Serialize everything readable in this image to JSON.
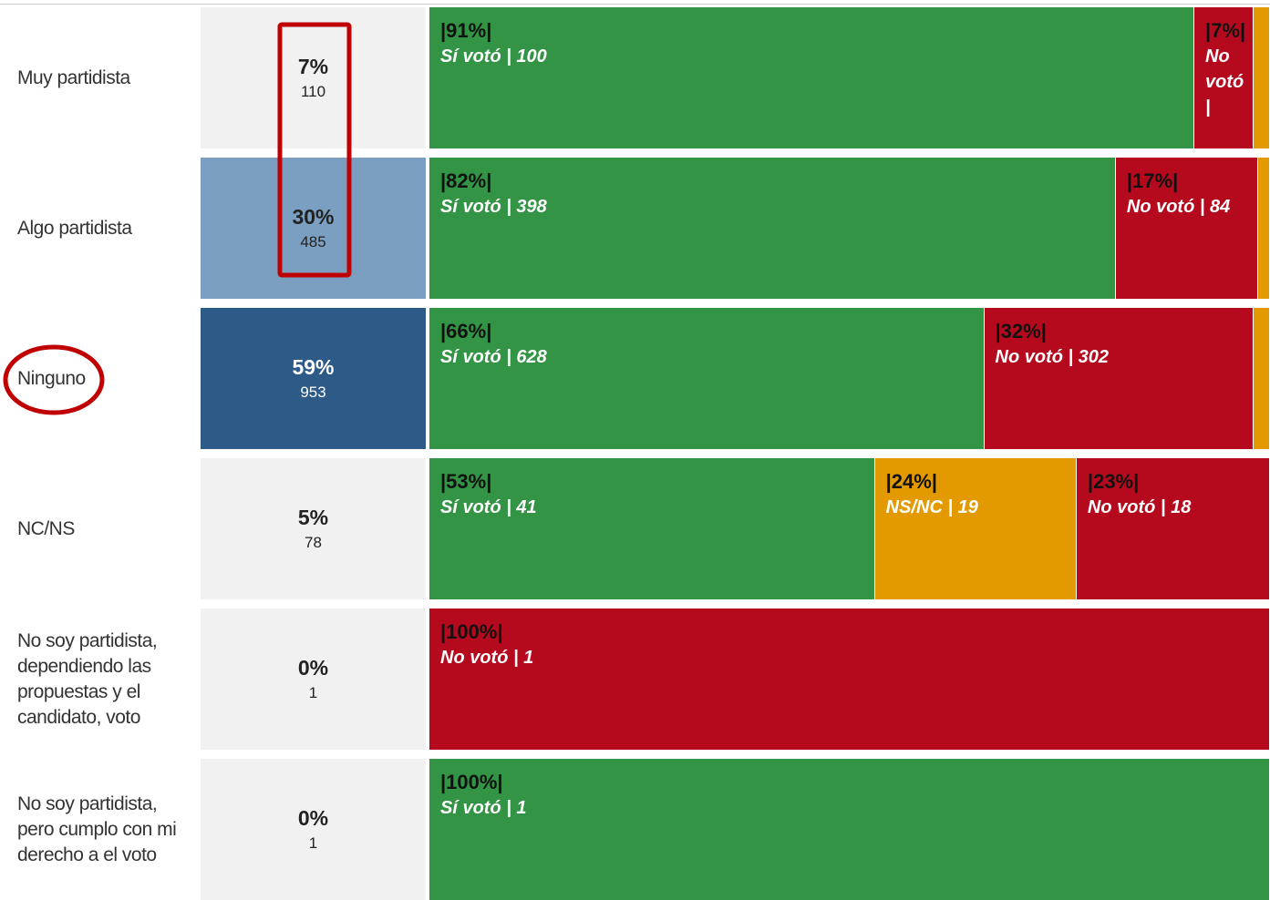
{
  "rows": [
    {
      "label": "Muy partidista",
      "share": "7%",
      "count": 110,
      "share_color": "#f1f1f1",
      "share_text_color": "#222",
      "segments": [
        {
          "value": 91,
          "value_label": "|91%|",
          "label": "Sí votó | 100",
          "color": "#329444"
        },
        {
          "value": 7,
          "value_label": "|7%|",
          "label": "No votó |",
          "color": "#b50a1e"
        },
        {
          "value": 2,
          "color": "#e29a00"
        }
      ]
    },
    {
      "label": "Algo partidista",
      "share": "30%",
      "count": 485,
      "share_color": "#7a9fc0",
      "share_text_color": "#222",
      "segments": [
        {
          "value": 82,
          "value_label": "|82%|",
          "label": "Sí votó | 398",
          "color": "#329444"
        },
        {
          "value": 17,
          "value_label": "|17%|",
          "label": "No votó | 84",
          "color": "#b50a1e"
        },
        {
          "value": 1,
          "color": "#e29a00"
        }
      ]
    },
    {
      "label": "Ninguno",
      "share": "59%",
      "count": 953,
      "share_color": "#2e5a87",
      "share_text_color": "#ffffff",
      "segments": [
        {
          "value": 66,
          "value_label": "|66%|",
          "label": "Sí votó | 628",
          "color": "#329444"
        },
        {
          "value": 32,
          "value_label": "|32%|",
          "label": "No votó | 302",
          "color": "#b50a1e"
        },
        {
          "value": 2,
          "color": "#e29a00"
        }
      ]
    },
    {
      "label": "NC/NS",
      "share": "5%",
      "count": 78,
      "share_color": "#f1f1f1",
      "share_text_color": "#222",
      "segments": [
        {
          "value": 53,
          "value_label": "|53%|",
          "label": "Sí votó | 41",
          "color": "#329444"
        },
        {
          "value": 24,
          "value_label": "|24%|",
          "label": "NS/NC | 19",
          "color": "#e29a00"
        },
        {
          "value": 23,
          "value_label": "|23%|",
          "label": "No votó | 18",
          "color": "#b50a1e"
        }
      ]
    },
    {
      "label": "No soy partidista, dependiendo las propuestas y el candidato, voto",
      "share": "0%",
      "count": 1,
      "share_color": "#f1f1f1",
      "share_text_color": "#222",
      "segments": [
        {
          "value": 100,
          "value_label": "|100%|",
          "label": "No votó | 1",
          "color": "#b50a1e"
        }
      ]
    },
    {
      "label": "No soy partidista, pero cumplo con mi derecho a el voto",
      "share": "0%",
      "count": 1,
      "share_color": "#f1f1f1",
      "share_text_color": "#222",
      "segments": [
        {
          "value": 100,
          "value_label": "|100%|",
          "label": "Sí votó | 1",
          "color": "#329444"
        }
      ]
    }
  ]
}
